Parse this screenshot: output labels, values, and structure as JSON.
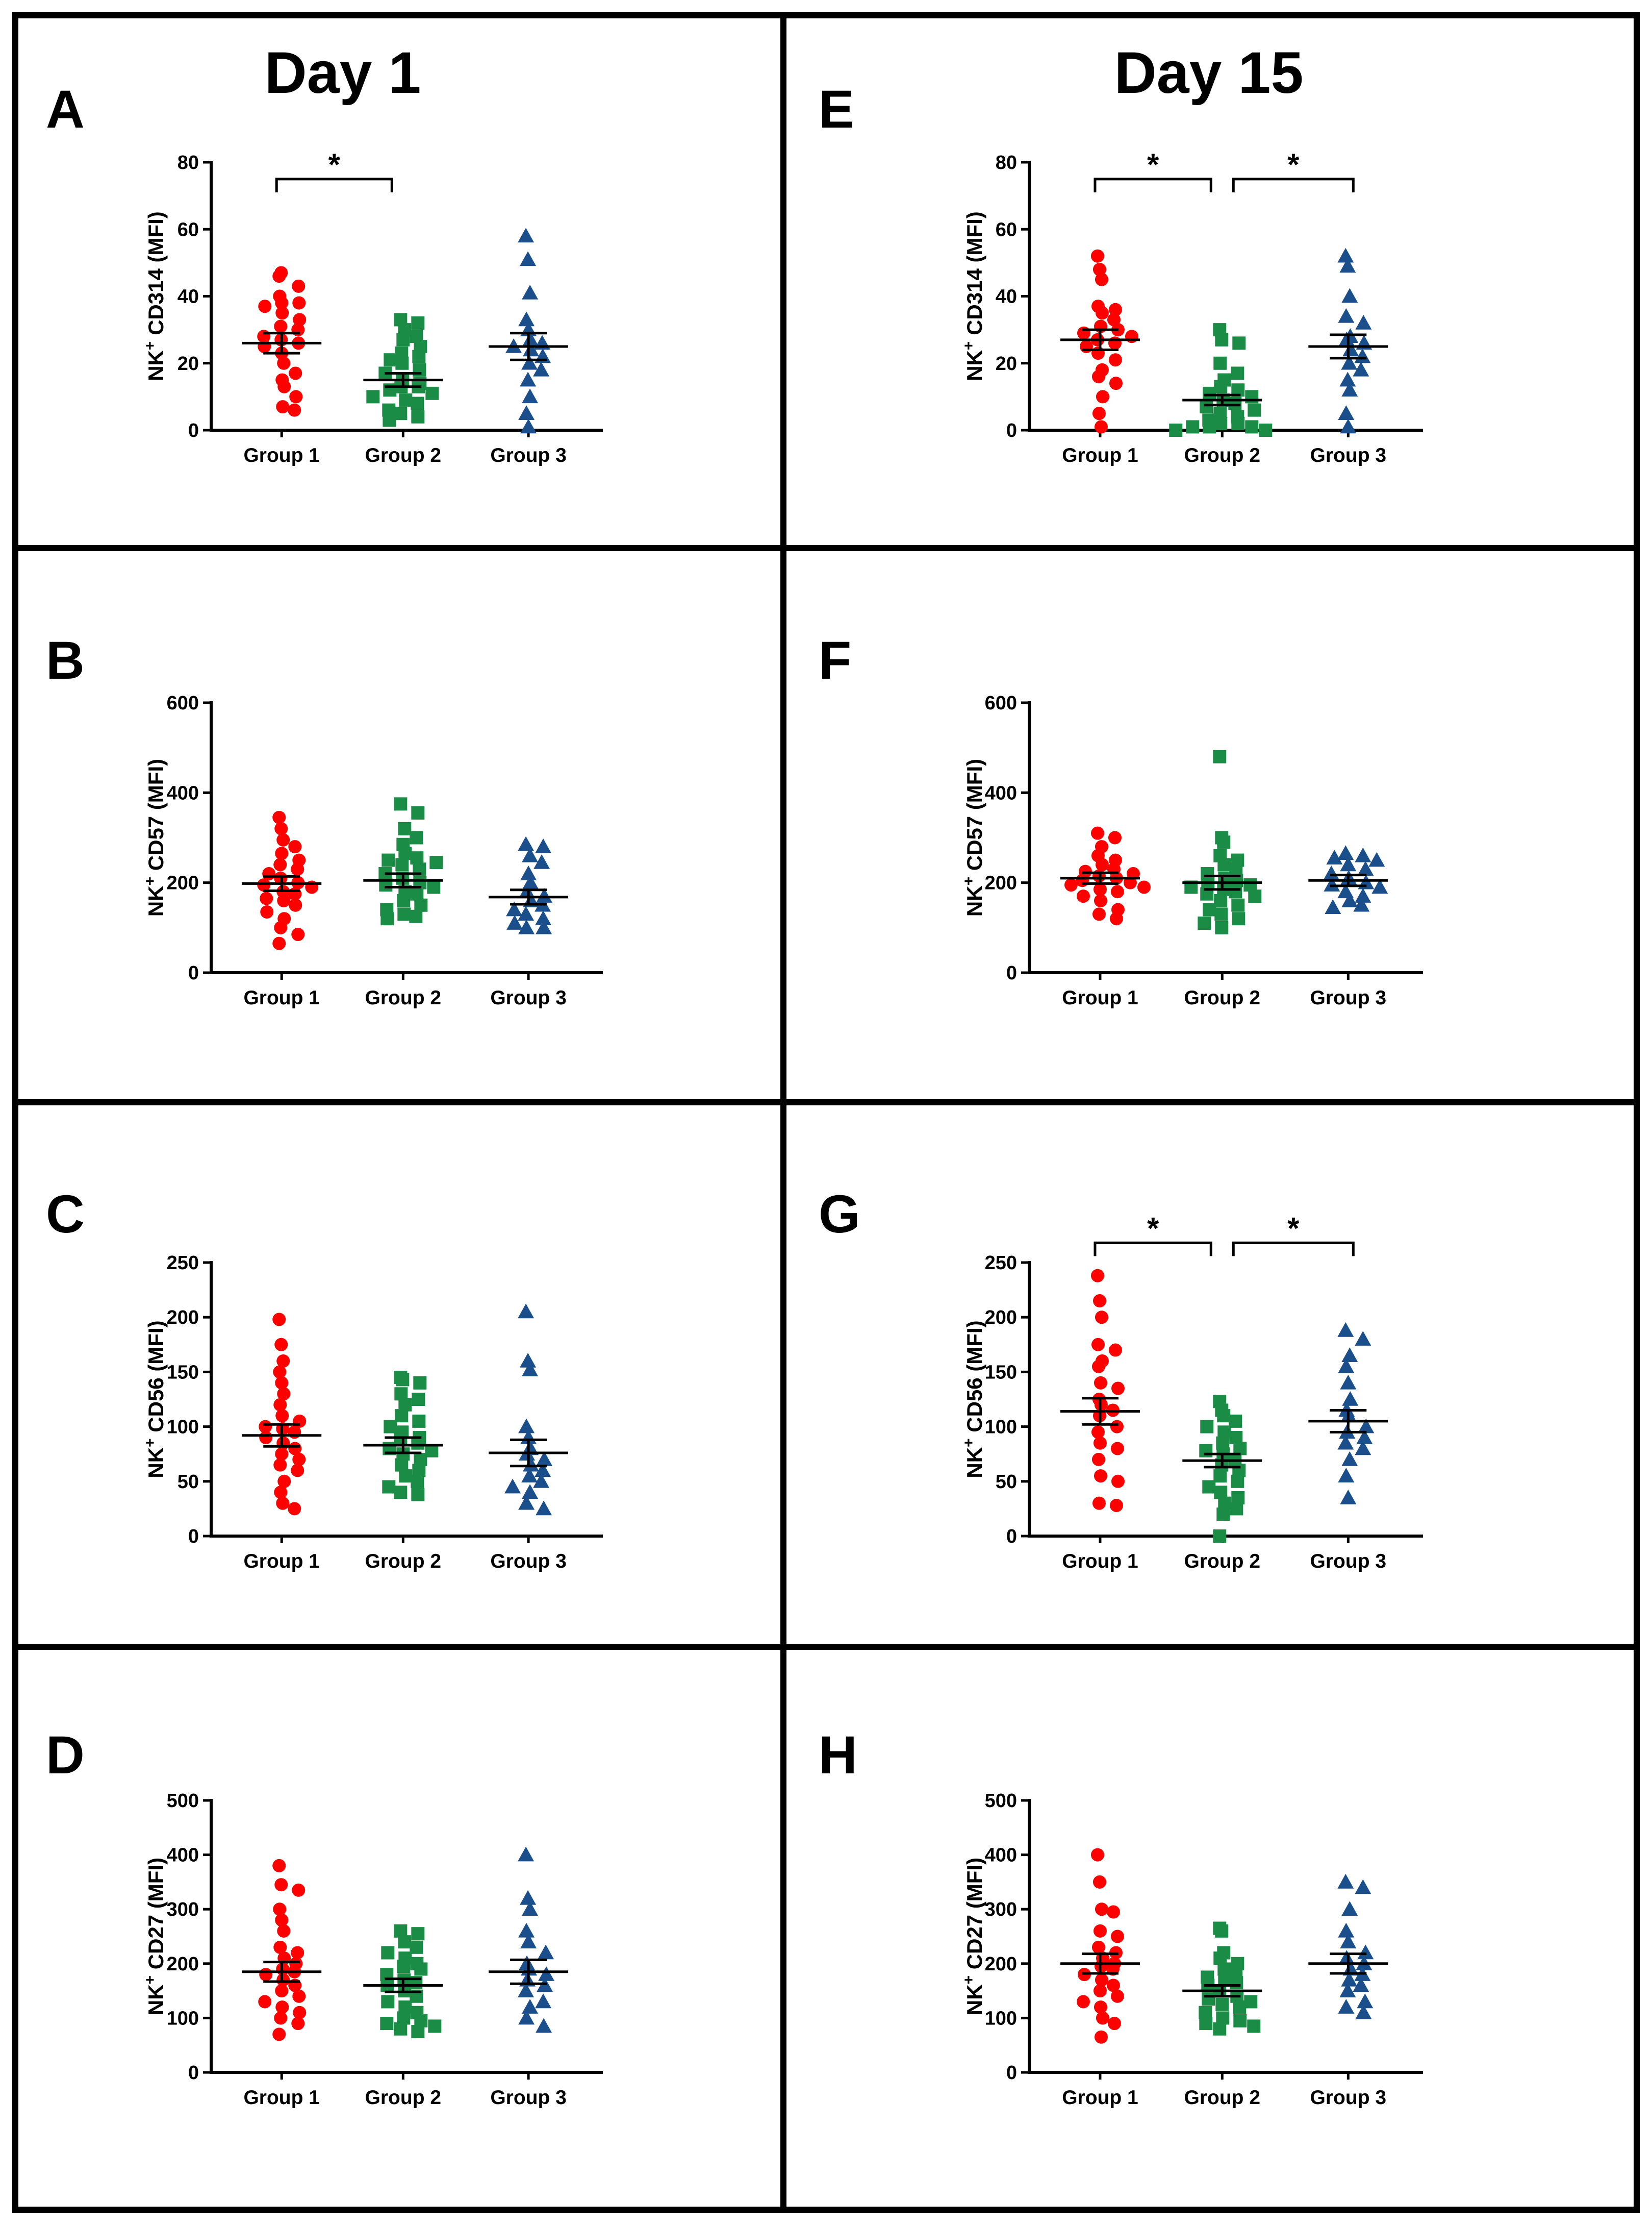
{
  "figure": {
    "col_titles": [
      "Day 1",
      "Day 15"
    ]
  },
  "colors": {
    "group1": "#ff0000",
    "group2": "#1a8c46",
    "group3": "#1b4f8c",
    "border": "#000000"
  },
  "chart_data": [
    {
      "panel": "A",
      "type": "scatter",
      "day": "Day 1",
      "ylabel_pre": "NK",
      "ylabel_sup": "+",
      "ylabel_post": " CD314 (MFI)",
      "ylim": [
        0,
        80
      ],
      "yticks": [
        0,
        20,
        40,
        60,
        80
      ],
      "categories": [
        "Group 1",
        "Group 2",
        "Group 3"
      ],
      "series": [
        {
          "name": "Group 1",
          "marker": "circle",
          "mean": 26,
          "sem": 3,
          "values": [
            46,
            47,
            43,
            40,
            38,
            38,
            37,
            35,
            33,
            31,
            30,
            28,
            27,
            26,
            25,
            23,
            20,
            17,
            15,
            13,
            10,
            7,
            6
          ]
        },
        {
          "name": "Group 2",
          "marker": "square",
          "mean": 15,
          "sem": 2,
          "values": [
            33,
            32,
            30,
            28,
            27,
            25,
            23,
            22,
            21,
            20,
            18,
            17,
            15,
            14,
            13,
            13,
            12,
            11,
            10,
            9,
            8,
            6,
            5,
            4,
            3
          ]
        },
        {
          "name": "Group 3",
          "marker": "triangle",
          "mean": 25,
          "sem": 4,
          "values": [
            58,
            51,
            41,
            33,
            30,
            27,
            26,
            25,
            24,
            22,
            20,
            18,
            15,
            10,
            5,
            1
          ]
        }
      ],
      "significance": [
        {
          "from": 0,
          "to": 1,
          "label": "*",
          "y": 75
        }
      ]
    },
    {
      "panel": "B",
      "type": "scatter",
      "day": "Day 1",
      "ylabel_pre": "NK",
      "ylabel_sup": "+",
      "ylabel_post": " CD57 (MFI)",
      "ylim": [
        0,
        600
      ],
      "yticks": [
        0,
        200,
        400,
        600
      ],
      "categories": [
        "Group 1",
        "Group 2",
        "Group 3"
      ],
      "series": [
        {
          "name": "Group 1",
          "marker": "circle",
          "mean": 198,
          "sem": 16,
          "values": [
            345,
            320,
            295,
            280,
            265,
            250,
            240,
            230,
            220,
            210,
            200,
            195,
            190,
            180,
            175,
            165,
            160,
            150,
            135,
            120,
            100,
            85,
            65
          ]
        },
        {
          "name": "Group 2",
          "marker": "square",
          "mean": 205,
          "sem": 15,
          "values": [
            375,
            355,
            320,
            300,
            285,
            265,
            255,
            250,
            245,
            240,
            230,
            220,
            210,
            200,
            195,
            190,
            180,
            175,
            160,
            150,
            140,
            130,
            125,
            120
          ]
        },
        {
          "name": "Group 3",
          "marker": "triangle",
          "mean": 168,
          "sem": 16,
          "values": [
            285,
            280,
            260,
            245,
            220,
            200,
            180,
            170,
            160,
            150,
            140,
            130,
            120,
            110,
            100,
            100
          ]
        }
      ],
      "significance": []
    },
    {
      "panel": "C",
      "type": "scatter",
      "day": "Day 1",
      "ylabel_pre": "NK",
      "ylabel_sup": "+",
      "ylabel_post": " CD56 (MFI)",
      "ylim": [
        0,
        250
      ],
      "yticks": [
        0,
        50,
        100,
        150,
        200,
        250
      ],
      "categories": [
        "Group 1",
        "Group 2",
        "Group 3"
      ],
      "series": [
        {
          "name": "Group 1",
          "marker": "circle",
          "mean": 92,
          "sem": 10,
          "values": [
            198,
            175,
            160,
            150,
            140,
            130,
            120,
            110,
            105,
            100,
            98,
            95,
            90,
            85,
            80,
            75,
            70,
            65,
            60,
            50,
            40,
            30,
            25
          ]
        },
        {
          "name": "Group 2",
          "marker": "square",
          "mean": 83,
          "sem": 7,
          "values": [
            145,
            143,
            140,
            130,
            125,
            120,
            110,
            105,
            100,
            95,
            90,
            88,
            85,
            80,
            78,
            75,
            70,
            65,
            60,
            55,
            50,
            45,
            40,
            38
          ]
        },
        {
          "name": "Group 3",
          "marker": "triangle",
          "mean": 76,
          "sem": 12,
          "values": [
            205,
            160,
            152,
            100,
            90,
            80,
            75,
            70,
            65,
            60,
            55,
            50,
            45,
            40,
            30,
            25
          ]
        }
      ],
      "significance": []
    },
    {
      "panel": "D",
      "type": "scatter",
      "day": "Day 1",
      "ylabel_pre": "NK",
      "ylabel_sup": "+",
      "ylabel_post": " CD27 (MFI)",
      "ylim": [
        0,
        500
      ],
      "yticks": [
        0,
        100,
        200,
        300,
        400,
        500
      ],
      "categories": [
        "Group 1",
        "Group 2",
        "Group 3"
      ],
      "series": [
        {
          "name": "Group 1",
          "marker": "circle",
          "mean": 185,
          "sem": 18,
          "values": [
            380,
            345,
            335,
            300,
            280,
            260,
            230,
            220,
            210,
            200,
            190,
            185,
            180,
            170,
            160,
            150,
            140,
            130,
            120,
            110,
            100,
            90,
            70
          ]
        },
        {
          "name": "Group 2",
          "marker": "square",
          "mean": 160,
          "sem": 12,
          "values": [
            260,
            255,
            240,
            230,
            220,
            210,
            200,
            195,
            190,
            180,
            170,
            165,
            160,
            150,
            140,
            130,
            120,
            110,
            100,
            95,
            90,
            85,
            80,
            75
          ]
        },
        {
          "name": "Group 3",
          "marker": "triangle",
          "mean": 185,
          "sem": 22,
          "values": [
            400,
            320,
            300,
            260,
            240,
            220,
            200,
            190,
            180,
            170,
            160,
            150,
            130,
            120,
            100,
            85
          ]
        }
      ],
      "significance": []
    },
    {
      "panel": "E",
      "type": "scatter",
      "day": "Day 15",
      "ylabel_pre": "NK",
      "ylabel_sup": "+",
      "ylabel_post": " CD314 (MFI)",
      "ylim": [
        0,
        80
      ],
      "yticks": [
        0,
        20,
        40,
        60,
        80
      ],
      "categories": [
        "Group 1",
        "Group 2",
        "Group 3"
      ],
      "series": [
        {
          "name": "Group 1",
          "marker": "circle",
          "mean": 27,
          "sem": 3,
          "values": [
            52,
            48,
            45,
            37,
            36,
            35,
            33,
            31,
            30,
            29,
            28,
            27,
            26,
            25,
            23,
            21,
            18,
            16,
            14,
            10,
            5,
            1
          ]
        },
        {
          "name": "Group 2",
          "marker": "square",
          "mean": 9,
          "sem": 1.5,
          "values": [
            30,
            27,
            26,
            20,
            17,
            15,
            13,
            12,
            11,
            10,
            9,
            8,
            7,
            6,
            5,
            4,
            3,
            2,
            2,
            1,
            1,
            1,
            0,
            0
          ]
        },
        {
          "name": "Group 3",
          "marker": "triangle",
          "mean": 25,
          "sem": 3.5,
          "values": [
            52,
            49,
            40,
            34,
            32,
            28,
            27,
            26,
            24,
            22,
            20,
            18,
            15,
            12,
            5,
            1
          ]
        }
      ],
      "significance": [
        {
          "from": 0,
          "to": 1,
          "label": "*",
          "y": 75
        },
        {
          "from": 1,
          "to": 2,
          "label": "*",
          "y": 75
        }
      ]
    },
    {
      "panel": "F",
      "type": "scatter",
      "day": "Day 15",
      "ylabel_pre": "NK",
      "ylabel_sup": "+",
      "ylabel_post": " CD57 (MFI)",
      "ylim": [
        0,
        600
      ],
      "yticks": [
        0,
        200,
        400,
        600
      ],
      "categories": [
        "Group 1",
        "Group 2",
        "Group 3"
      ],
      "series": [
        {
          "name": "Group 1",
          "marker": "circle",
          "mean": 210,
          "sem": 12,
          "values": [
            310,
            300,
            280,
            260,
            250,
            240,
            230,
            225,
            220,
            215,
            210,
            205,
            200,
            195,
            190,
            185,
            180,
            170,
            160,
            140,
            130,
            120
          ]
        },
        {
          "name": "Group 2",
          "marker": "square",
          "mean": 200,
          "sem": 15,
          "values": [
            480,
            300,
            290,
            260,
            250,
            240,
            230,
            220,
            210,
            205,
            200,
            195,
            190,
            185,
            180,
            175,
            170,
            160,
            150,
            140,
            130,
            120,
            110,
            100
          ]
        },
        {
          "name": "Group 3",
          "marker": "triangle",
          "mean": 205,
          "sem": 12,
          "values": [
            265,
            260,
            255,
            250,
            240,
            230,
            220,
            210,
            200,
            195,
            190,
            180,
            170,
            160,
            150,
            145
          ]
        }
      ],
      "significance": []
    },
    {
      "panel": "G",
      "type": "scatter",
      "day": "Day 15",
      "ylabel_pre": "NK",
      "ylabel_sup": "+",
      "ylabel_post": " CD56 (MFI)",
      "ylim": [
        0,
        250
      ],
      "yticks": [
        0,
        50,
        100,
        150,
        200,
        250
      ],
      "categories": [
        "Group 1",
        "Group 2",
        "Group 3"
      ],
      "series": [
        {
          "name": "Group 1",
          "marker": "circle",
          "mean": 114,
          "sem": 12,
          "values": [
            238,
            215,
            200,
            175,
            170,
            160,
            155,
            140,
            135,
            125,
            120,
            115,
            110,
            100,
            95,
            85,
            80,
            70,
            55,
            50,
            30,
            28
          ]
        },
        {
          "name": "Group 2",
          "marker": "square",
          "mean": 69,
          "sem": 6,
          "values": [
            123,
            115,
            110,
            105,
            100,
            95,
            90,
            85,
            80,
            78,
            75,
            70,
            65,
            60,
            55,
            50,
            45,
            40,
            35,
            30,
            25,
            20,
            0
          ]
        },
        {
          "name": "Group 3",
          "marker": "triangle",
          "mean": 105,
          "sem": 10,
          "values": [
            188,
            180,
            165,
            155,
            140,
            125,
            115,
            110,
            100,
            95,
            90,
            85,
            80,
            70,
            55,
            35
          ]
        }
      ],
      "significance": [
        {
          "from": 0,
          "to": 1,
          "label": "*",
          "y": 268
        },
        {
          "from": 1,
          "to": 2,
          "label": "*",
          "y": 268
        }
      ]
    },
    {
      "panel": "H",
      "type": "scatter",
      "day": "Day 15",
      "ylabel_pre": "NK",
      "ylabel_sup": "+",
      "ylabel_post": " CD27 (MFI)",
      "ylim": [
        0,
        500
      ],
      "yticks": [
        0,
        100,
        200,
        300,
        400,
        500
      ],
      "categories": [
        "Group 1",
        "Group 2",
        "Group 3"
      ],
      "series": [
        {
          "name": "Group 1",
          "marker": "circle",
          "mean": 200,
          "sem": 18,
          "values": [
            400,
            350,
            300,
            295,
            260,
            250,
            230,
            220,
            210,
            200,
            195,
            190,
            180,
            170,
            160,
            150,
            140,
            130,
            120,
            100,
            90,
            65
          ]
        },
        {
          "name": "Group 2",
          "marker": "square",
          "mean": 150,
          "sem": 10,
          "values": [
            265,
            260,
            220,
            210,
            200,
            190,
            180,
            175,
            170,
            165,
            160,
            150,
            140,
            135,
            130,
            125,
            120,
            110,
            100,
            95,
            90,
            85,
            80
          ]
        },
        {
          "name": "Group 3",
          "marker": "triangle",
          "mean": 200,
          "sem": 18,
          "values": [
            350,
            340,
            300,
            260,
            240,
            220,
            210,
            200,
            190,
            180,
            170,
            160,
            150,
            130,
            120,
            110
          ]
        }
      ],
      "significance": []
    }
  ]
}
